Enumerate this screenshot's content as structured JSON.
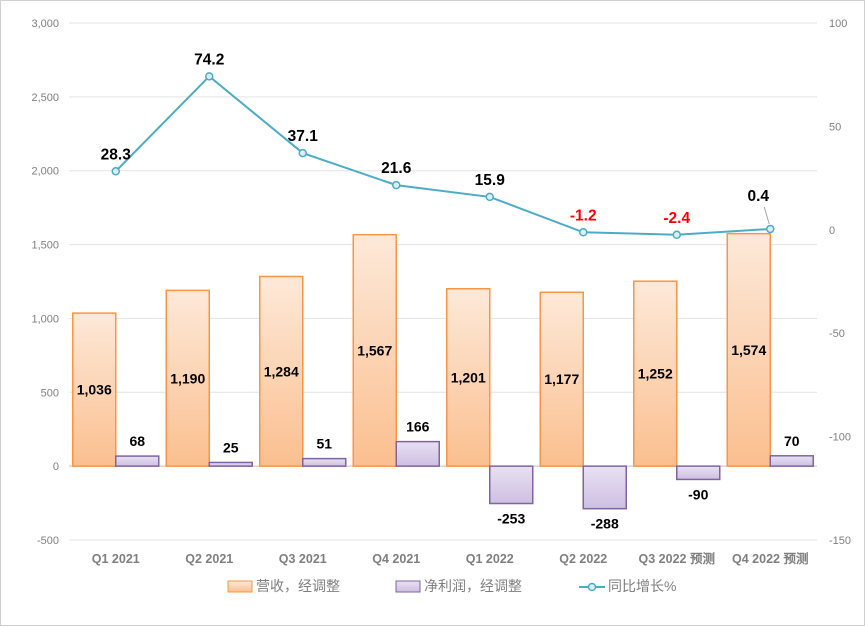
{
  "chart_data": {
    "type": "bar+line",
    "categories": [
      "Q1 2021",
      "Q2 2021",
      "Q3 2021",
      "Q4 2021",
      "Q1 2022",
      "Q2 2022",
      "Q3 2022 预测",
      "Q4 2022 预测"
    ],
    "series": [
      {
        "name": "营收，经调整",
        "type": "bar",
        "axis": "left",
        "color": "#f79646",
        "values": [
          1036,
          1190,
          1284,
          1567,
          1201,
          1177,
          1252,
          1574
        ],
        "labels": [
          "1,036",
          "1,190",
          "1,284",
          "1,567",
          "1,201",
          "1,177",
          "1,252",
          "1,574"
        ]
      },
      {
        "name": "净利润，经调整",
        "type": "bar",
        "axis": "left",
        "color": "#8064a2",
        "values": [
          68,
          25,
          51,
          166,
          -253,
          -288,
          -90,
          70
        ],
        "labels": [
          "68",
          "25",
          "51",
          "166",
          "-253",
          "-288",
          "-90",
          "70"
        ]
      },
      {
        "name": "同比增长%",
        "type": "line",
        "axis": "right",
        "color": "#4bacc6",
        "values": [
          28.3,
          74.2,
          37.1,
          21.6,
          15.9,
          -1.2,
          -2.4,
          0.4
        ],
        "labels": [
          "28.3",
          "74.2",
          "37.1",
          "21.6",
          "15.9",
          "-1.2",
          "-2.4",
          "0.4"
        ]
      }
    ],
    "left_axis": {
      "ylim": [
        -500,
        3000
      ],
      "ticks": [
        "-500",
        "0",
        "500",
        "1,000",
        "1,500",
        "2,000",
        "2,500",
        "3,000"
      ]
    },
    "right_axis": {
      "ylim": [
        -150,
        100
      ],
      "ticks": [
        "-150",
        "-100",
        "-50",
        "0",
        "50",
        "100"
      ]
    },
    "grid": true,
    "legend": "bottom",
    "negative_label_color": "#ff0000"
  }
}
